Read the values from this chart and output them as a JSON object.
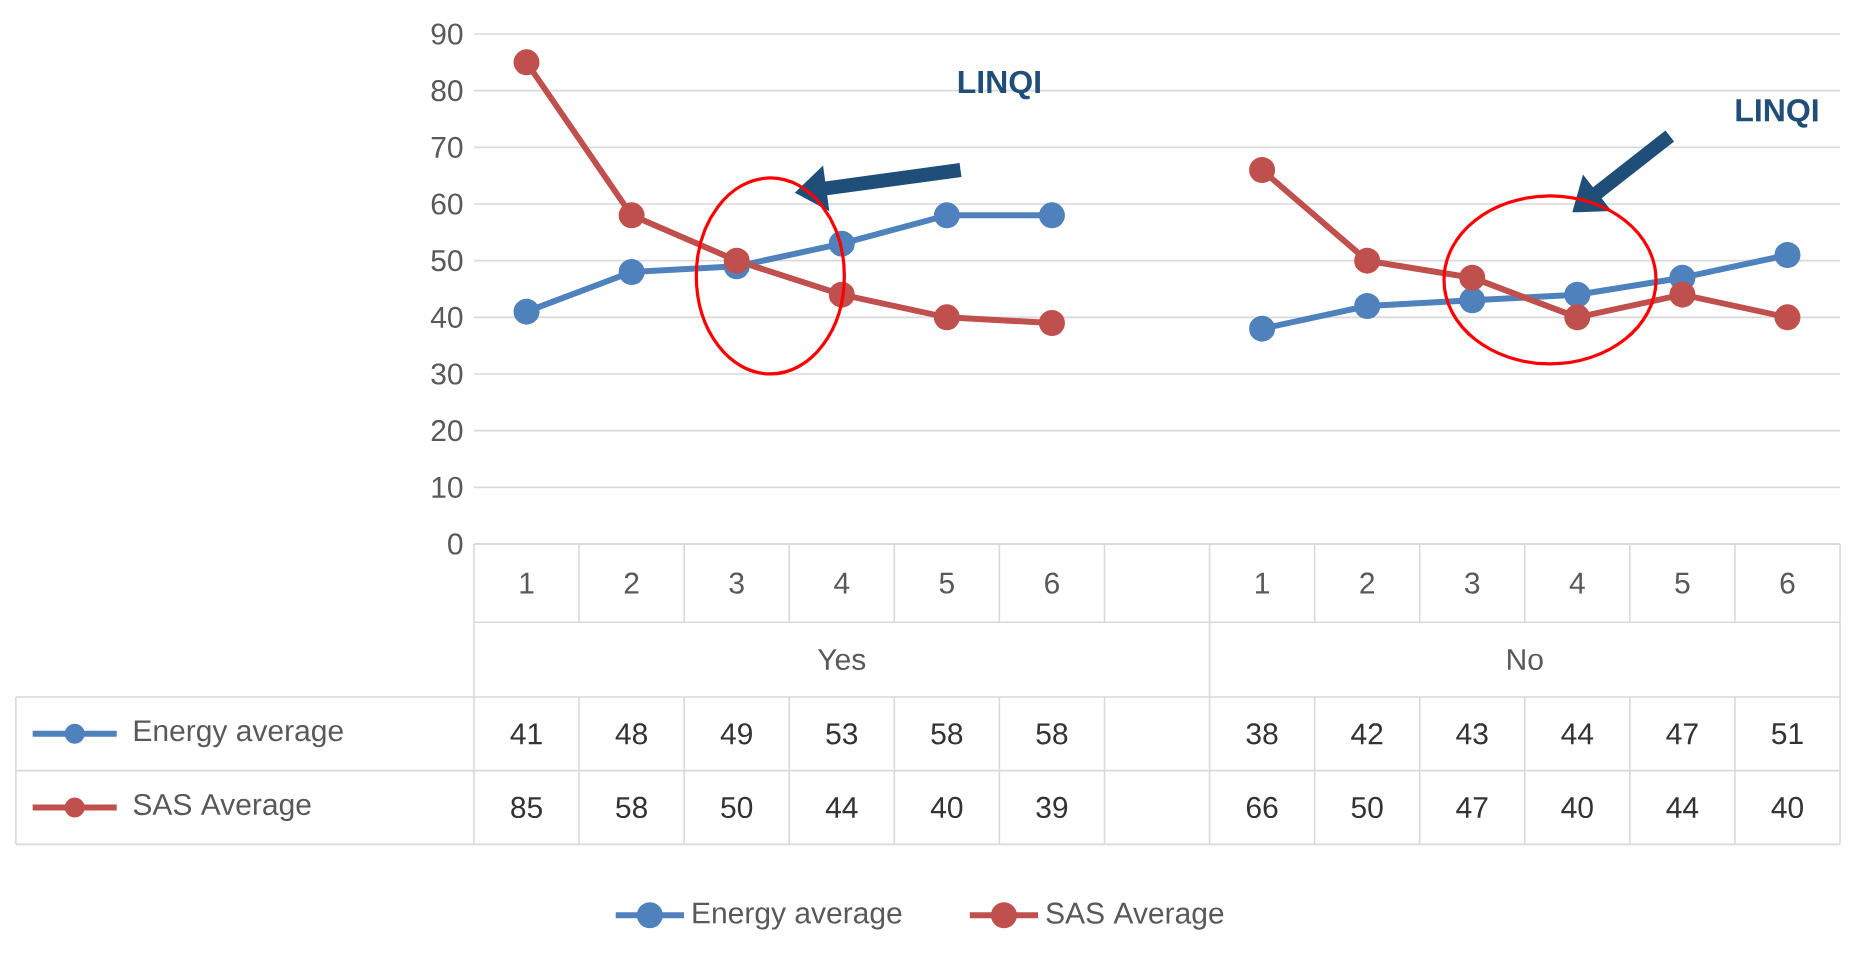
{
  "chart_data": {
    "type": "line",
    "categories": [
      "1",
      "2",
      "3",
      "4",
      "5",
      "6",
      null,
      "1",
      "2",
      "3",
      "4",
      "5",
      "6"
    ],
    "series": [
      {
        "name": "Energy average",
        "color": "#4f81bd",
        "values": [
          41,
          48,
          49,
          53,
          58,
          58,
          null,
          38,
          42,
          43,
          44,
          47,
          51
        ]
      },
      {
        "name": "SAS Average",
        "color": "#c0504d",
        "values": [
          85,
          58,
          50,
          44,
          40,
          39,
          null,
          66,
          50,
          47,
          40,
          44,
          40
        ]
      }
    ],
    "ylim": [
      0,
      90
    ],
    "yticks": [
      0,
      10,
      20,
      30,
      40,
      50,
      60,
      70,
      80,
      90
    ],
    "grid": "y",
    "legend": "bottom",
    "marker": "circle",
    "line_style": "solid",
    "data_labels": true,
    "annotations": [
      "LINQI",
      "LINQI",
      "Yes",
      "No"
    ]
  }
}
